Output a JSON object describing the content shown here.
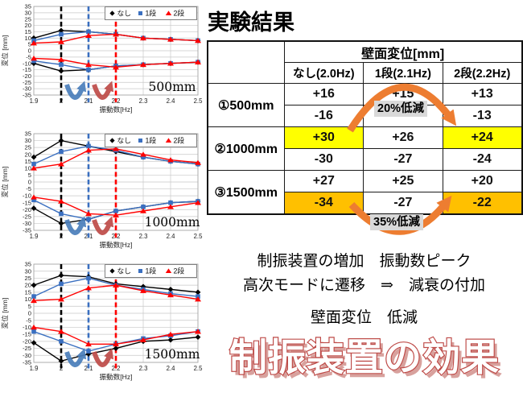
{
  "heading": "実験結果",
  "colors": {
    "series_nashi": "#000000",
    "series_1dan": "#3A6FC0",
    "series_2dan": "#FF0000",
    "highlight_yellow": "#FFFF00",
    "highlight_orange": "#FFC000",
    "reduction_arrow": "#ED7D31",
    "badge_bg": "#D9D9D9",
    "big_title_red": "#BE4B48",
    "chart_arrow_blue": "#4A7EBB",
    "chart_arrow_red": "#BE4B48"
  },
  "chart_data": [
    {
      "type": "line",
      "title": "500mm",
      "xlabel": "振動数[Hz]",
      "ylabel": "変位 [mm]",
      "x": [
        1.9,
        2.0,
        2.1,
        2.2,
        2.3,
        2.4,
        2.5
      ],
      "ylim": [
        -35,
        35
      ],
      "ytick_step": 5,
      "grid": true,
      "legend_position": "top-right",
      "legend": [
        "なし",
        "1段",
        "2段"
      ],
      "vlines": [
        {
          "x": 2.0,
          "color": "#000000"
        },
        {
          "x": 2.1,
          "color": "#3A6FC0"
        },
        {
          "x": 2.2,
          "color": "#FF0000"
        }
      ],
      "series": [
        {
          "name": "なし",
          "color": "#000000",
          "marker": "diamond",
          "upper": [
            10,
            16,
            15,
            13,
            10,
            9,
            8
          ],
          "lower": [
            -10,
            -16,
            -15,
            -12,
            -11,
            -10,
            -9
          ]
        },
        {
          "name": "1段",
          "color": "#3A6FC0",
          "marker": "square",
          "upper": [
            8,
            13,
            15,
            13,
            10,
            9,
            8
          ],
          "lower": [
            -8,
            -11,
            -15,
            -12,
            -11,
            -10,
            -9
          ]
        },
        {
          "name": "2段",
          "color": "#FF0000",
          "marker": "triangle",
          "upper": [
            6,
            7,
            12,
            13,
            10,
            9,
            8
          ],
          "lower": [
            -6,
            -7,
            -11,
            -13,
            -11,
            -10,
            -9
          ]
        }
      ]
    },
    {
      "type": "line",
      "title": "1000mm",
      "xlabel": "振動数[Hz]",
      "ylabel": "変位 [mm]",
      "x": [
        1.9,
        2.0,
        2.1,
        2.2,
        2.3,
        2.4,
        2.5
      ],
      "ylim": [
        -35,
        35
      ],
      "ytick_step": 5,
      "grid": true,
      "legend_position": "top-right",
      "legend": [
        "なし",
        "1段",
        "2段"
      ],
      "vlines": [
        {
          "x": 2.0,
          "color": "#000000"
        },
        {
          "x": 2.1,
          "color": "#3A6FC0"
        },
        {
          "x": 2.2,
          "color": "#FF0000"
        }
      ],
      "series": [
        {
          "name": "なし",
          "color": "#000000",
          "marker": "diamond",
          "upper": [
            18,
            30,
            26,
            22,
            18,
            15,
            13
          ],
          "lower": [
            -19,
            -30,
            -27,
            -21,
            -18,
            -15,
            -14
          ]
        },
        {
          "name": "1段",
          "color": "#3A6FC0",
          "marker": "square",
          "upper": [
            13,
            22,
            26,
            23,
            18,
            15,
            13
          ],
          "lower": [
            -13,
            -23,
            -27,
            -21,
            -18,
            -15,
            -14
          ]
        },
        {
          "name": "2段",
          "color": "#FF0000",
          "marker": "triangle",
          "upper": [
            10,
            13,
            23,
            24,
            20,
            16,
            14
          ],
          "lower": [
            -11,
            -14,
            -23,
            -24,
            -21,
            -18,
            -15
          ]
        }
      ]
    },
    {
      "type": "line",
      "title": "1500mm",
      "xlabel": "振動数[Hz]",
      "ylabel": "変位 [mm]",
      "x": [
        1.9,
        2.0,
        2.1,
        2.2,
        2.3,
        2.4,
        2.5
      ],
      "ylim": [
        -35,
        35
      ],
      "ytick_step": 5,
      "grid": true,
      "legend_position": "top-right",
      "legend": [
        "なし",
        "1段",
        "2段"
      ],
      "vlines": [
        {
          "x": 2.0,
          "color": "#000000"
        },
        {
          "x": 2.1,
          "color": "#3A6FC0"
        },
        {
          "x": 2.2,
          "color": "#FF0000"
        }
      ],
      "series": [
        {
          "name": "なし",
          "color": "#000000",
          "marker": "diamond",
          "upper": [
            20,
            27,
            26,
            21,
            19,
            17,
            15
          ],
          "lower": [
            -21,
            -34,
            -29,
            -25,
            -20,
            -19,
            -17
          ]
        },
        {
          "name": "1段",
          "color": "#3A6FC0",
          "marker": "square",
          "upper": [
            12,
            21,
            25,
            20,
            17,
            14,
            12
          ],
          "lower": [
            -13,
            -20,
            -27,
            -22,
            -18,
            -16,
            -13
          ]
        },
        {
          "name": "2段",
          "color": "#FF0000",
          "marker": "triangle",
          "upper": [
            9,
            10,
            18,
            20,
            16,
            13,
            10
          ],
          "lower": [
            -10,
            -13,
            -22,
            -22,
            -19,
            -15,
            -13
          ]
        }
      ]
    }
  ],
  "table": {
    "span_header": "壁面変位[mm]",
    "col_headers": [
      "なし(2.0Hz)",
      "1段(2.1Hz)",
      "2段(2.2Hz)"
    ],
    "groups": [
      {
        "label": "①500mm",
        "rows": [
          {
            "cells": [
              {
                "t": "+16"
              },
              {
                "t": "+15"
              },
              {
                "t": "+13"
              }
            ]
          },
          {
            "cells": [
              {
                "t": "-16"
              },
              {
                "t": ""
              },
              {
                "t": "-13"
              }
            ]
          }
        ]
      },
      {
        "label": "②1000mm",
        "rows": [
          {
            "cells": [
              {
                "t": "+30",
                "bg": "#FFFF00"
              },
              {
                "t": "+26"
              },
              {
                "t": "+24",
                "bg": "#FFFF00"
              }
            ]
          },
          {
            "cells": [
              {
                "t": "-30"
              },
              {
                "t": "-27"
              },
              {
                "t": "-24"
              }
            ]
          }
        ]
      },
      {
        "label": "③1500mm",
        "rows": [
          {
            "cells": [
              {
                "t": "+27"
              },
              {
                "t": "+25"
              },
              {
                "t": "+20"
              }
            ]
          },
          {
            "cells": [
              {
                "t": "-34",
                "bg": "#FFC000"
              },
              {
                "t": "-27"
              },
              {
                "t": "-22",
                "bg": "#FFC000"
              }
            ]
          }
        ]
      }
    ]
  },
  "reductions": {
    "label_20": "20%低減",
    "label_35": "35%低減"
  },
  "conclusion": {
    "line1": "制振装置の増加　振動数ピーク",
    "line2": "高次モードに遷移　⇒　減衰の付加",
    "line3": "壁面変位　低減"
  },
  "big_title": "制振装置の効果"
}
